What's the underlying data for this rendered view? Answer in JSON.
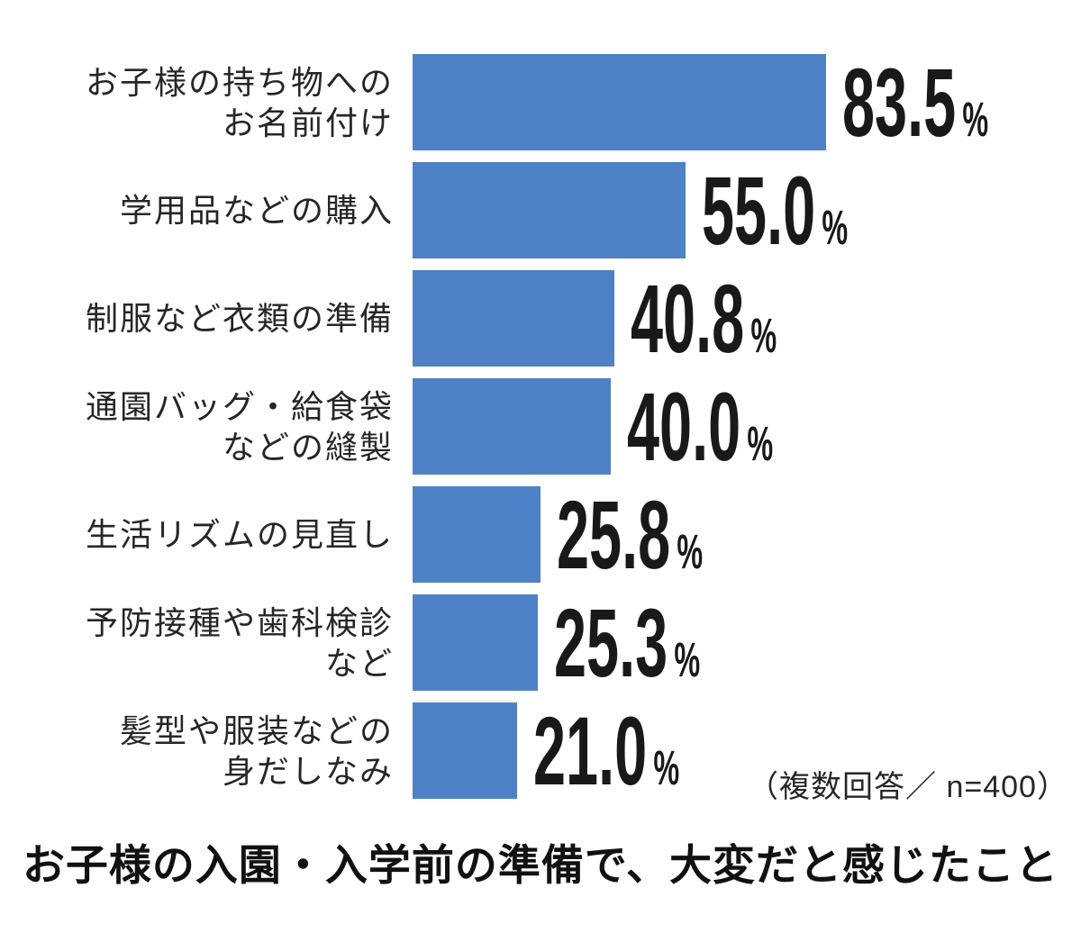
{
  "chart_data": {
    "type": "bar",
    "orientation": "horizontal",
    "categories": [
      "お子様の持ち物への\nお名前付け",
      "学用品などの購入",
      "制服など衣類の準備",
      "通園バッグ・給食袋\nなどの縫製",
      "生活リズムの見直し",
      "予防接種や歯科検診\nなど",
      "髪型や服装などの\n身だしなみ"
    ],
    "values": [
      83.5,
      55.0,
      40.8,
      40.0,
      25.8,
      25.3,
      21.0
    ],
    "value_suffix": "%",
    "title": "お子様の入園・入学前の準備で、大変だと感じたこと",
    "note": "（複数回答／ n=400）",
    "xlabel": "",
    "ylabel": "",
    "xlim": [
      0,
      100
    ],
    "grid": false,
    "legend": "none",
    "bar_color": "#4e81c5",
    "value_text_color": "#191919",
    "label_text_color": "#262626",
    "title_text_color": "#111111"
  }
}
